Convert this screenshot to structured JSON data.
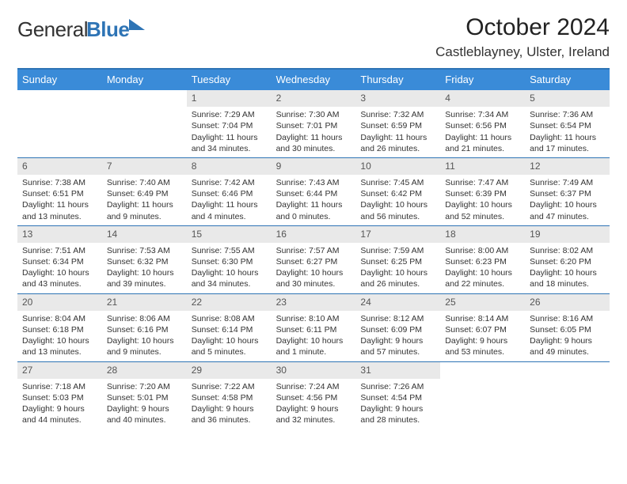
{
  "logo": {
    "part1": "General",
    "part2": "Blue"
  },
  "title": "October 2024",
  "subtitle": "Castleblayney, Ulster, Ireland",
  "day_headers": [
    "Sunday",
    "Monday",
    "Tuesday",
    "Wednesday",
    "Thursday",
    "Friday",
    "Saturday"
  ],
  "colors": {
    "header_bg": "#3a8bd8",
    "border": "#2e74b5",
    "daynum_bg": "#e9e9e9",
    "text": "#333333",
    "logo_blue": "#2e74b5"
  },
  "weeks": [
    [
      {
        "num": "",
        "sunrise": "",
        "sunset": "",
        "daylight": ""
      },
      {
        "num": "",
        "sunrise": "",
        "sunset": "",
        "daylight": ""
      },
      {
        "num": "1",
        "sunrise": "Sunrise: 7:29 AM",
        "sunset": "Sunset: 7:04 PM",
        "daylight": "Daylight: 11 hours and 34 minutes."
      },
      {
        "num": "2",
        "sunrise": "Sunrise: 7:30 AM",
        "sunset": "Sunset: 7:01 PM",
        "daylight": "Daylight: 11 hours and 30 minutes."
      },
      {
        "num": "3",
        "sunrise": "Sunrise: 7:32 AM",
        "sunset": "Sunset: 6:59 PM",
        "daylight": "Daylight: 11 hours and 26 minutes."
      },
      {
        "num": "4",
        "sunrise": "Sunrise: 7:34 AM",
        "sunset": "Sunset: 6:56 PM",
        "daylight": "Daylight: 11 hours and 21 minutes."
      },
      {
        "num": "5",
        "sunrise": "Sunrise: 7:36 AM",
        "sunset": "Sunset: 6:54 PM",
        "daylight": "Daylight: 11 hours and 17 minutes."
      }
    ],
    [
      {
        "num": "6",
        "sunrise": "Sunrise: 7:38 AM",
        "sunset": "Sunset: 6:51 PM",
        "daylight": "Daylight: 11 hours and 13 minutes."
      },
      {
        "num": "7",
        "sunrise": "Sunrise: 7:40 AM",
        "sunset": "Sunset: 6:49 PM",
        "daylight": "Daylight: 11 hours and 9 minutes."
      },
      {
        "num": "8",
        "sunrise": "Sunrise: 7:42 AM",
        "sunset": "Sunset: 6:46 PM",
        "daylight": "Daylight: 11 hours and 4 minutes."
      },
      {
        "num": "9",
        "sunrise": "Sunrise: 7:43 AM",
        "sunset": "Sunset: 6:44 PM",
        "daylight": "Daylight: 11 hours and 0 minutes."
      },
      {
        "num": "10",
        "sunrise": "Sunrise: 7:45 AM",
        "sunset": "Sunset: 6:42 PM",
        "daylight": "Daylight: 10 hours and 56 minutes."
      },
      {
        "num": "11",
        "sunrise": "Sunrise: 7:47 AM",
        "sunset": "Sunset: 6:39 PM",
        "daylight": "Daylight: 10 hours and 52 minutes."
      },
      {
        "num": "12",
        "sunrise": "Sunrise: 7:49 AM",
        "sunset": "Sunset: 6:37 PM",
        "daylight": "Daylight: 10 hours and 47 minutes."
      }
    ],
    [
      {
        "num": "13",
        "sunrise": "Sunrise: 7:51 AM",
        "sunset": "Sunset: 6:34 PM",
        "daylight": "Daylight: 10 hours and 43 minutes."
      },
      {
        "num": "14",
        "sunrise": "Sunrise: 7:53 AM",
        "sunset": "Sunset: 6:32 PM",
        "daylight": "Daylight: 10 hours and 39 minutes."
      },
      {
        "num": "15",
        "sunrise": "Sunrise: 7:55 AM",
        "sunset": "Sunset: 6:30 PM",
        "daylight": "Daylight: 10 hours and 34 minutes."
      },
      {
        "num": "16",
        "sunrise": "Sunrise: 7:57 AM",
        "sunset": "Sunset: 6:27 PM",
        "daylight": "Daylight: 10 hours and 30 minutes."
      },
      {
        "num": "17",
        "sunrise": "Sunrise: 7:59 AM",
        "sunset": "Sunset: 6:25 PM",
        "daylight": "Daylight: 10 hours and 26 minutes."
      },
      {
        "num": "18",
        "sunrise": "Sunrise: 8:00 AM",
        "sunset": "Sunset: 6:23 PM",
        "daylight": "Daylight: 10 hours and 22 minutes."
      },
      {
        "num": "19",
        "sunrise": "Sunrise: 8:02 AM",
        "sunset": "Sunset: 6:20 PM",
        "daylight": "Daylight: 10 hours and 18 minutes."
      }
    ],
    [
      {
        "num": "20",
        "sunrise": "Sunrise: 8:04 AM",
        "sunset": "Sunset: 6:18 PM",
        "daylight": "Daylight: 10 hours and 13 minutes."
      },
      {
        "num": "21",
        "sunrise": "Sunrise: 8:06 AM",
        "sunset": "Sunset: 6:16 PM",
        "daylight": "Daylight: 10 hours and 9 minutes."
      },
      {
        "num": "22",
        "sunrise": "Sunrise: 8:08 AM",
        "sunset": "Sunset: 6:14 PM",
        "daylight": "Daylight: 10 hours and 5 minutes."
      },
      {
        "num": "23",
        "sunrise": "Sunrise: 8:10 AM",
        "sunset": "Sunset: 6:11 PM",
        "daylight": "Daylight: 10 hours and 1 minute."
      },
      {
        "num": "24",
        "sunrise": "Sunrise: 8:12 AM",
        "sunset": "Sunset: 6:09 PM",
        "daylight": "Daylight: 9 hours and 57 minutes."
      },
      {
        "num": "25",
        "sunrise": "Sunrise: 8:14 AM",
        "sunset": "Sunset: 6:07 PM",
        "daylight": "Daylight: 9 hours and 53 minutes."
      },
      {
        "num": "26",
        "sunrise": "Sunrise: 8:16 AM",
        "sunset": "Sunset: 6:05 PM",
        "daylight": "Daylight: 9 hours and 49 minutes."
      }
    ],
    [
      {
        "num": "27",
        "sunrise": "Sunrise: 7:18 AM",
        "sunset": "Sunset: 5:03 PM",
        "daylight": "Daylight: 9 hours and 44 minutes."
      },
      {
        "num": "28",
        "sunrise": "Sunrise: 7:20 AM",
        "sunset": "Sunset: 5:01 PM",
        "daylight": "Daylight: 9 hours and 40 minutes."
      },
      {
        "num": "29",
        "sunrise": "Sunrise: 7:22 AM",
        "sunset": "Sunset: 4:58 PM",
        "daylight": "Daylight: 9 hours and 36 minutes."
      },
      {
        "num": "30",
        "sunrise": "Sunrise: 7:24 AM",
        "sunset": "Sunset: 4:56 PM",
        "daylight": "Daylight: 9 hours and 32 minutes."
      },
      {
        "num": "31",
        "sunrise": "Sunrise: 7:26 AM",
        "sunset": "Sunset: 4:54 PM",
        "daylight": "Daylight: 9 hours and 28 minutes."
      },
      {
        "num": "",
        "sunrise": "",
        "sunset": "",
        "daylight": ""
      },
      {
        "num": "",
        "sunrise": "",
        "sunset": "",
        "daylight": ""
      }
    ]
  ]
}
